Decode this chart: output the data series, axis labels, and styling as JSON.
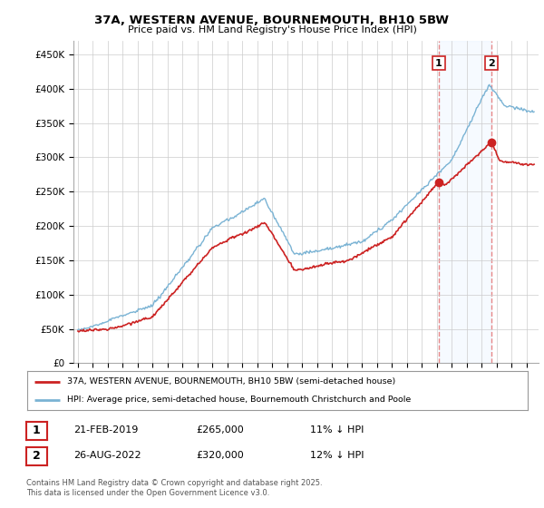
{
  "title_line1": "37A, WESTERN AVENUE, BOURNEMOUTH, BH10 5BW",
  "title_line2": "Price paid vs. HM Land Registry's House Price Index (HPI)",
  "ylim": [
    0,
    470000
  ],
  "yticks": [
    0,
    50000,
    100000,
    150000,
    200000,
    250000,
    300000,
    350000,
    400000,
    450000
  ],
  "ytick_labels": [
    "£0",
    "£50K",
    "£100K",
    "£150K",
    "£200K",
    "£250K",
    "£300K",
    "£350K",
    "£400K",
    "£450K"
  ],
  "hpi_color": "#7ab3d4",
  "price_color": "#cc2222",
  "dashed_color": "#e88888",
  "shade_color": "#ddeeff",
  "sale1_year": 2019.13,
  "sale2_year": 2022.65,
  "sale1_price": 265000,
  "sale2_price": 320000,
  "legend_property": "37A, WESTERN AVENUE, BOURNEMOUTH, BH10 5BW (semi-detached house)",
  "legend_hpi": "HPI: Average price, semi-detached house, Bournemouth Christchurch and Poole",
  "table_row1": [
    "1",
    "21-FEB-2019",
    "£265,000",
    "11% ↓ HPI"
  ],
  "table_row2": [
    "2",
    "26-AUG-2022",
    "£320,000",
    "12% ↓ HPI"
  ],
  "footnote": "Contains HM Land Registry data © Crown copyright and database right 2025.\nThis data is licensed under the Open Government Licence v3.0.",
  "background_color": "#ffffff",
  "grid_color": "#cccccc"
}
